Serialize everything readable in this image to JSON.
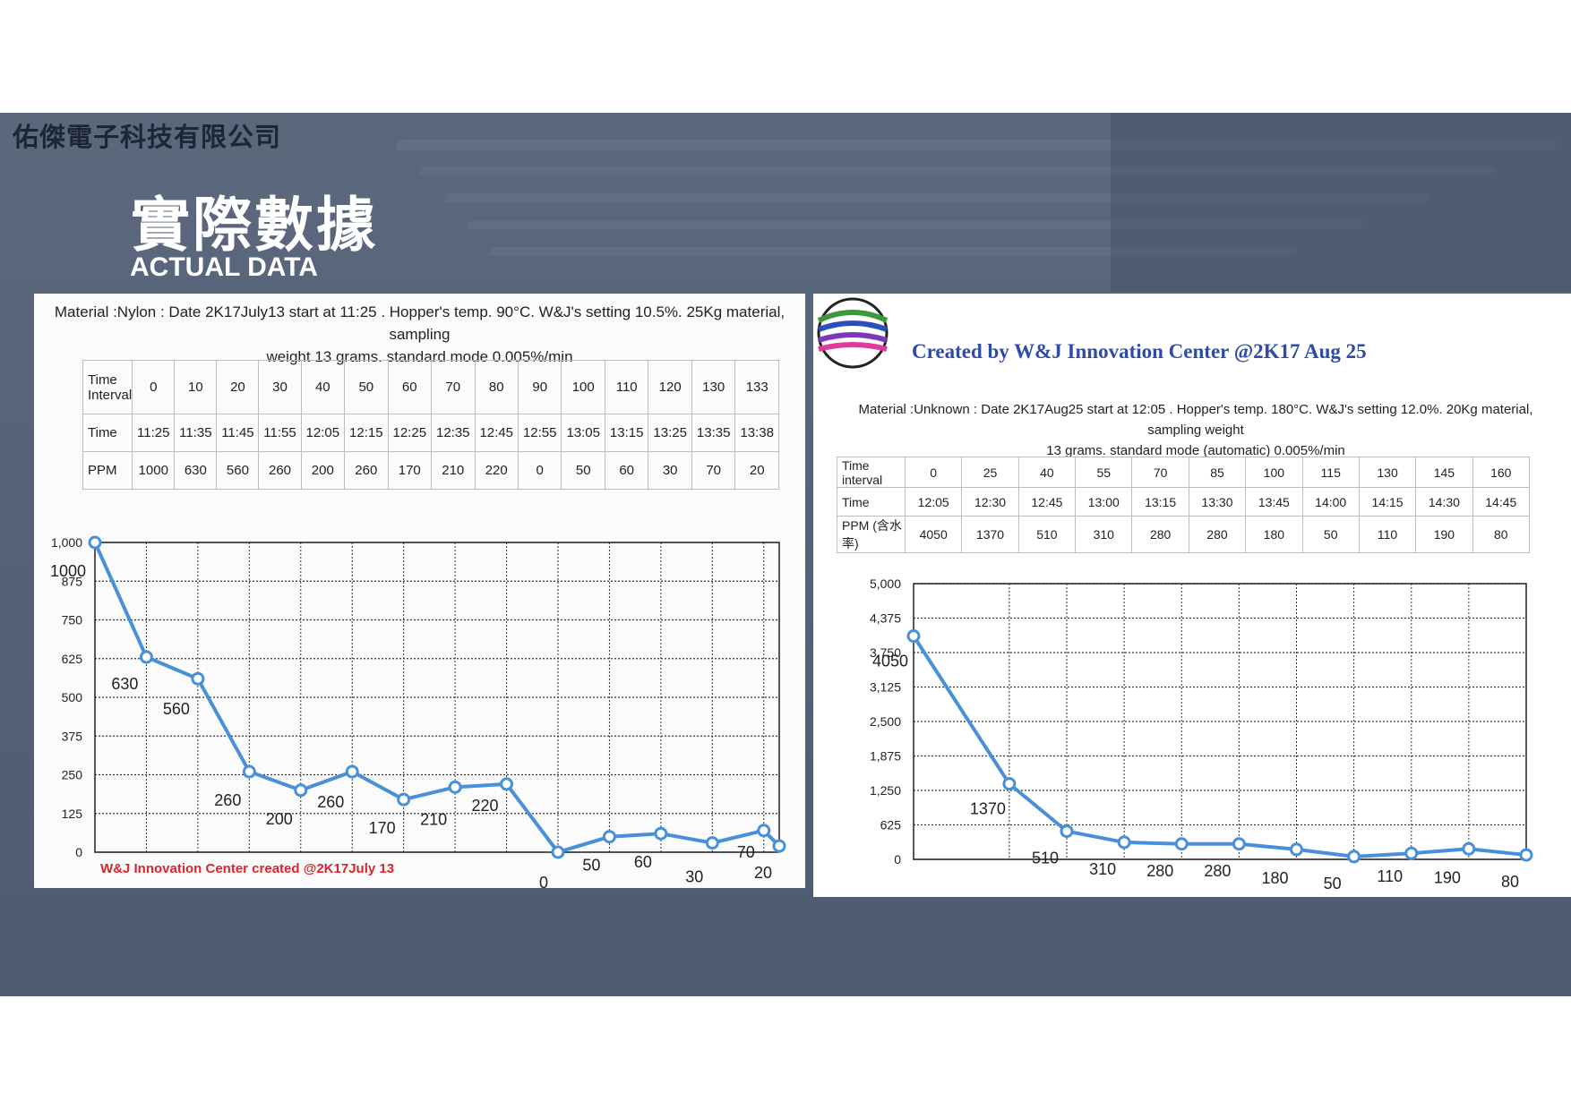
{
  "header": {
    "company": "佑傑電子科技有限公司",
    "title_zh": "實際數據",
    "title_en": "ACTUAL DATA"
  },
  "left": {
    "description_line1": "Material :Nylon : Date 2K17July13 start at 11:25 . Hopper's temp. 90°C. W&J's setting 10.5%. 25Kg material, sampling",
    "description_line2": "weight 13 grams. standard mode 0.005%/min",
    "table": {
      "row_labels": [
        "Time Interval",
        "Time",
        "PPM"
      ],
      "interval": [
        "0",
        "10",
        "20",
        "30",
        "40",
        "50",
        "60",
        "70",
        "80",
        "90",
        "100",
        "110",
        "120",
        "130",
        "133"
      ],
      "time": [
        "11:25",
        "11:35",
        "11:45",
        "11:55",
        "12:05",
        "12:15",
        "12:25",
        "12:35",
        "12:45",
        "12:55",
        "13:05",
        "13:15",
        "13:25",
        "13:35",
        "13:38"
      ],
      "ppm": [
        "1000",
        "630",
        "560",
        "260",
        "200",
        "260",
        "170",
        "210",
        "220",
        "0",
        "50",
        "60",
        "30",
        "70",
        "20"
      ]
    },
    "footnote": "W&J Innovation Center created @2K17July 13"
  },
  "right": {
    "caption": "Created by W&J Innovation Center @2K17 Aug 25",
    "description_line1": "Material :Unknown : Date 2K17Aug25 start at 12:05 . Hopper's temp. 180°C. W&J's setting 12.0%. 20Kg material, sampling weight",
    "description_line2": "13 grams. standard mode (automatic) 0.005%/min",
    "table": {
      "row_labels": [
        "Time interval",
        "Time",
        "PPM (含水率)"
      ],
      "interval": [
        "0",
        "25",
        "40",
        "55",
        "70",
        "85",
        "100",
        "115",
        "130",
        "145",
        "160"
      ],
      "time": [
        "12:05",
        "12:30",
        "12:45",
        "13:00",
        "13:15",
        "13:30",
        "13:45",
        "14:00",
        "14:15",
        "14:30",
        "14:45"
      ],
      "ppm": [
        "4050",
        "1370",
        "510",
        "310",
        "280",
        "280",
        "180",
        "50",
        "110",
        "190",
        "80"
      ]
    }
  },
  "chart_data": [
    {
      "type": "line",
      "x": [
        0,
        10,
        20,
        30,
        40,
        50,
        60,
        70,
        80,
        90,
        100,
        110,
        120,
        130,
        133
      ],
      "series": [
        {
          "values": [
            1000,
            630,
            560,
            260,
            200,
            260,
            170,
            210,
            220,
            0,
            50,
            60,
            30,
            70,
            20
          ]
        }
      ],
      "data_labels": [
        "1000",
        "630",
        "560",
        "260",
        "200",
        "260",
        "170",
        "210",
        "220",
        "0",
        "50",
        "60",
        "30",
        "70",
        "20"
      ],
      "ylim": [
        0,
        1000
      ],
      "y_ticks": [
        "1,000",
        "875",
        "750",
        "625",
        "500",
        "375",
        "250",
        "125",
        "0"
      ],
      "grid": true,
      "color": "#4a90d9"
    },
    {
      "type": "line",
      "x": [
        0,
        25,
        40,
        55,
        70,
        85,
        100,
        115,
        130,
        145,
        160
      ],
      "series": [
        {
          "values": [
            4050,
            1370,
            510,
            310,
            280,
            280,
            180,
            50,
            110,
            190,
            80
          ]
        }
      ],
      "data_labels": [
        "4050",
        "1370",
        "510",
        "310",
        "280",
        "280",
        "180",
        "50",
        "110",
        "190",
        "80"
      ],
      "ylim": [
        0,
        5000
      ],
      "y_ticks": [
        "5,000",
        "4,375",
        "3,750",
        "3,125",
        "2,500",
        "1,875",
        "1,250",
        "625",
        "0"
      ],
      "grid": true,
      "color": "#4a90d9"
    }
  ]
}
